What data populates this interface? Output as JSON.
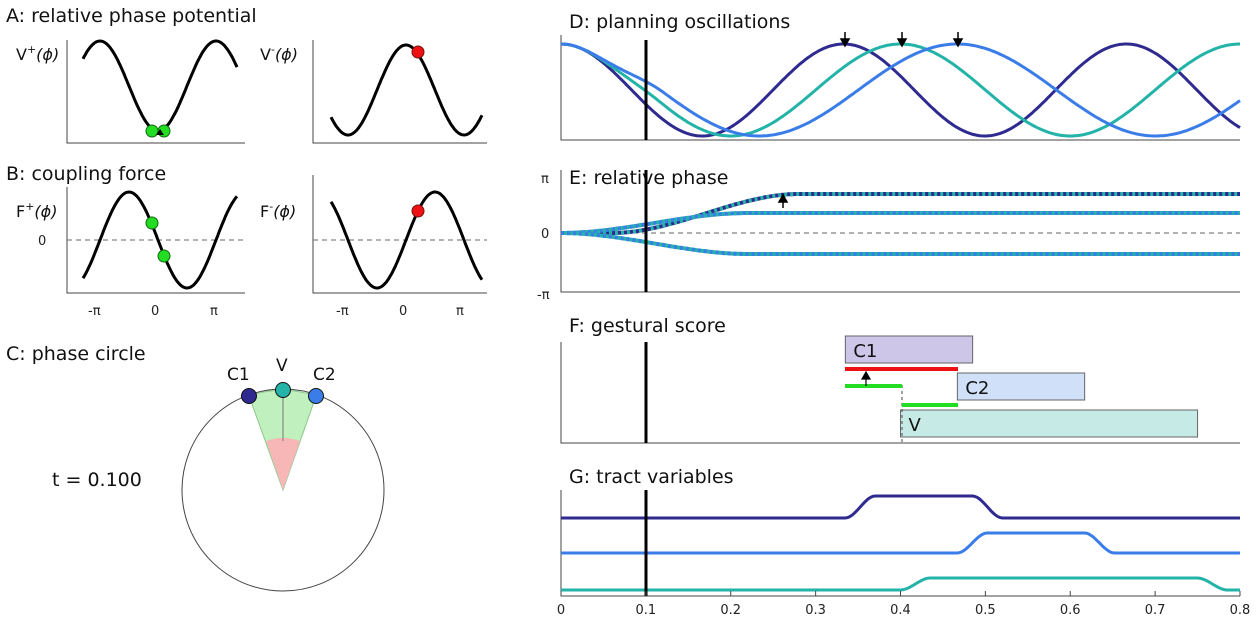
{
  "panel_a": {
    "title": "A: relative phase potential",
    "left_ylabel_main": "V",
    "left_ylabel_sup": "+",
    "left_ylabel_arg": "(ϕ)",
    "right_ylabel_main": "V",
    "right_ylabel_sup": "-",
    "right_ylabel_arg": "(ϕ)"
  },
  "panel_b": {
    "title": "B: coupling force",
    "left_ylabel_main": "F",
    "left_ylabel_sup": "+",
    "left_ylabel_arg": "(ϕ)",
    "right_ylabel_main": "F",
    "right_ylabel_sup": "-",
    "right_ylabel_arg": "(ϕ)",
    "y_zero_label": "0",
    "x_ticks": [
      "-π",
      "0",
      "π"
    ]
  },
  "panel_c": {
    "title": "C: phase circle",
    "time_label": "t = 0.100",
    "markers": [
      {
        "label": "C1",
        "color": "#2f2a8f"
      },
      {
        "label": "V",
        "color": "#23b3a8"
      },
      {
        "label": "C2",
        "color": "#3b7de8"
      }
    ]
  },
  "panel_d": {
    "title": "D: planning oscillations"
  },
  "panel_e": {
    "title": "E: relative phase",
    "y_ticks": [
      "π",
      "0",
      "-π"
    ]
  },
  "panel_f": {
    "title": "F: gestural score",
    "gestures": [
      {
        "label": "C1",
        "start": 0.335,
        "end": 0.485,
        "color": "#cdc6e8"
      },
      {
        "label": "C2",
        "start": 0.467,
        "end": 0.617,
        "color": "#cfe0f8"
      },
      {
        "label": "V",
        "start": 0.4,
        "end": 0.75,
        "color": "#c6ebe6"
      }
    ]
  },
  "panel_g": {
    "title": "G: tract variables",
    "x_ticks": [
      "0",
      "0.1",
      "0.2",
      "0.3",
      "0.4",
      "0.5",
      "0.6",
      "0.7",
      "0.8"
    ]
  },
  "colors": {
    "C1": "#2f2a8f",
    "C2": "#3b7de8",
    "V": "#23b3a8",
    "green": "#22dd22",
    "red": "#ee1111"
  },
  "chart_data": {
    "type": "line",
    "x_range": [
      0,
      0.8
    ],
    "time_marker": 0.1,
    "oscillation_peaks": [
      0.333,
      0.4,
      0.467
    ]
  }
}
